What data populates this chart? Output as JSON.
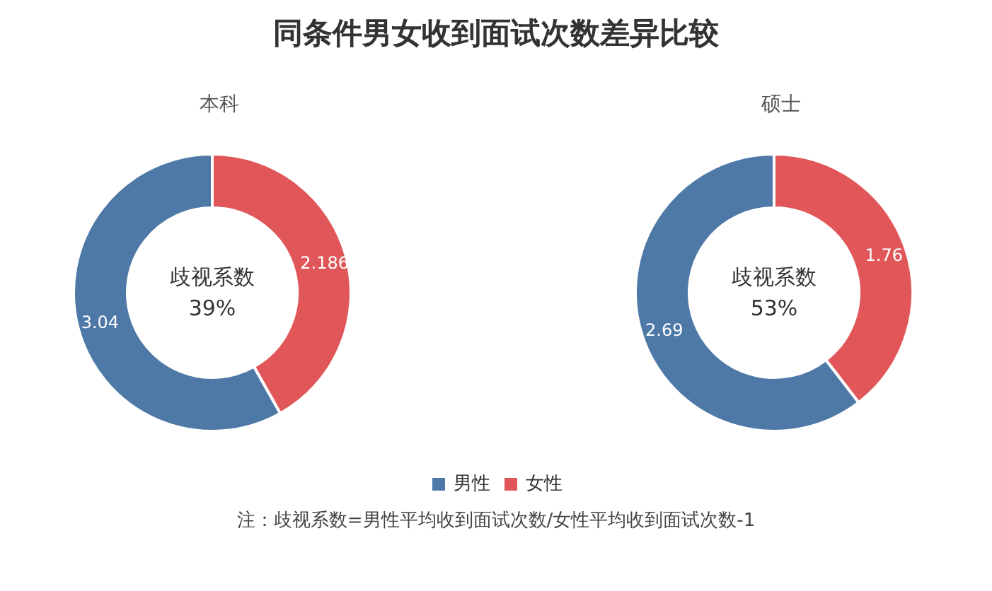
{
  "chart_data": {
    "type": "donut",
    "title": "同条件男女收到面试次数差异比较",
    "categories": [
      "男性",
      "女性"
    ],
    "colors": [
      "#4e79a7",
      "#e15759"
    ],
    "series": [
      {
        "name": "本科",
        "values": [
          3.04,
          2.186
        ]
      },
      {
        "name": "硕士",
        "values": [
          2.69,
          1.76
        ]
      }
    ],
    "data_labels": true,
    "annotations": [
      "歧视系数",
      "39%",
      "歧视系数",
      "53%",
      "注：歧视系数=男性平均收到面试次数/女性平均收到面试次数-1"
    ],
    "legend": "bottom"
  }
}
